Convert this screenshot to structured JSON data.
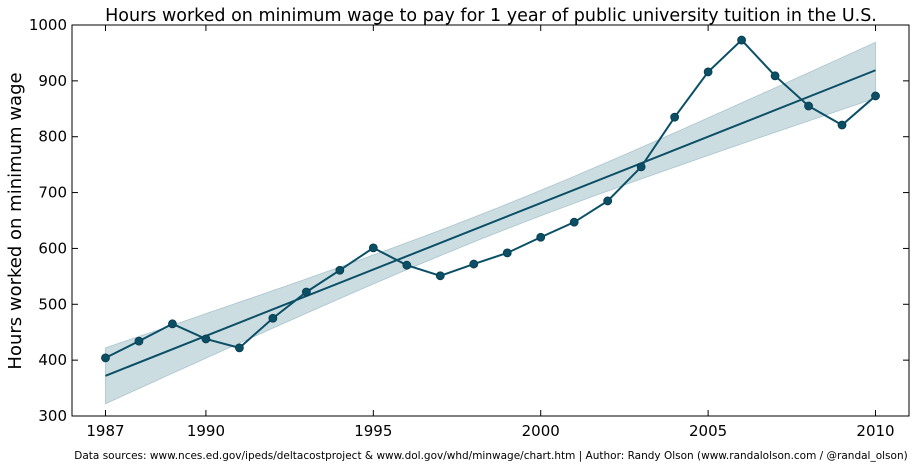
{
  "chart_data": {
    "type": "line",
    "title": "Hours worked on minimum wage to pay for 1 year of public university tuition in the U.S.",
    "ylabel": "Hours worked on minimum wage",
    "xlabel": "",
    "xlim": [
      1986,
      2011
    ],
    "ylim": [
      300,
      1000
    ],
    "xticks": [
      1987,
      1990,
      1995,
      2000,
      2005,
      2010
    ],
    "yticks": [
      300,
      400,
      500,
      600,
      700,
      800,
      900,
      1000
    ],
    "grid": false,
    "colors": {
      "line": "#0b4f66",
      "band": "#ccdde2",
      "band_edge": "#a9c4cd"
    },
    "series": [
      {
        "x": [
          1987,
          1988,
          1989,
          1990,
          1991,
          1992,
          1993,
          1994,
          1995,
          1996,
          1997,
          1998,
          1999,
          2000,
          2001,
          2002,
          2003,
          2004,
          2005,
          2006,
          2007,
          2008,
          2009,
          2010
        ],
        "values": [
          404,
          434,
          465,
          438,
          422,
          475,
          522,
          561,
          601,
          570,
          551,
          572,
          592,
          620,
          647,
          685,
          746,
          835,
          916,
          973,
          909,
          855,
          821,
          873
        ]
      }
    ],
    "fit": {
      "x": [
        1987,
        2010
      ],
      "values": [
        372,
        919
      ],
      "ci_halfwidth_ends": 50,
      "ci_halfwidth_center": 22
    }
  },
  "footnote": "Data sources: www.nces.ed.gov/ipeds/deltacostproject & www.dol.gov/whd/minwage/chart.htm | Author: Randy Olson (www.randalolson.com / @randal_olson)"
}
